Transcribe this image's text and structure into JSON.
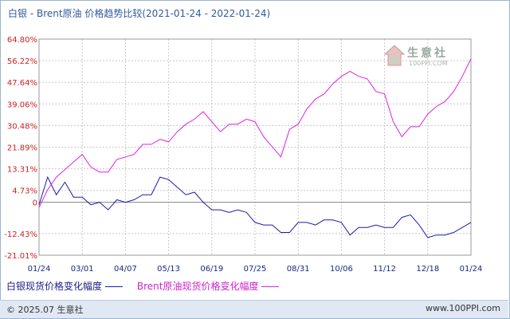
{
  "title": "白银 - Brent原油 价格趋势比较(2021-01-24 - 2022-01-24)",
  "legend": {
    "silver_label": "白银现货价格变化幅度",
    "brent_label": "Brent原油现货价格变化幅度"
  },
  "footer": {
    "copyright": "© 2025.07 生意社",
    "site": "www.100PPI.com"
  },
  "watermark": {
    "brand": "生意社",
    "sub": "100PPI.COM"
  },
  "colors": {
    "silver": "#1c1ca8",
    "brent": "#e020e0",
    "axis_text": "#cc2222",
    "x_text": "#1a2a80",
    "grid": "#c8c8c8",
    "title": "#31599c"
  },
  "chart_data": {
    "type": "line",
    "title": "白银 - Brent原油 价格趋势比较(2021-01-24 - 2022-01-24)",
    "x_labels": [
      "01/24",
      "03/01",
      "04/07",
      "05/13",
      "06/19",
      "07/25",
      "08/31",
      "10/06",
      "11/12",
      "12/18",
      "01/24"
    ],
    "y_ticks": [
      64.8,
      56.22,
      47.64,
      39.06,
      30.48,
      21.89,
      13.31,
      4.73,
      0,
      -12.43,
      -21.01
    ],
    "y_tick_labels": [
      "64.80%",
      "56.22%",
      "47.64%",
      "39.06%",
      "30.48%",
      "21.89%",
      "13.31%",
      "4.73%",
      "0",
      "-12.43%",
      "-21.01%"
    ],
    "ylim": [
      -21.01,
      64.8
    ],
    "grid": true,
    "series": [
      {
        "name": "白银现货价格变化幅度",
        "x": [
          0,
          0.2,
          0.4,
          0.6,
          0.8,
          1,
          1.2,
          1.4,
          1.6,
          1.8,
          2,
          2.2,
          2.4,
          2.6,
          2.8,
          3,
          3.2,
          3.4,
          3.6,
          3.8,
          4,
          4.2,
          4.4,
          4.6,
          4.8,
          5,
          5.2,
          5.4,
          5.6,
          5.8,
          6,
          6.2,
          6.4,
          6.6,
          6.8,
          7,
          7.2,
          7.4,
          7.6,
          7.8,
          8,
          8.2,
          8.4,
          8.6,
          8.8,
          9,
          9.2,
          9.4,
          9.6,
          9.8,
          10
        ],
        "y": [
          -1,
          10,
          3,
          8,
          2,
          2,
          -1,
          0,
          -3,
          1,
          0,
          1,
          3,
          3,
          10,
          9,
          6,
          3,
          4,
          0,
          -3,
          -3,
          -4,
          -3,
          -4,
          -8,
          -9,
          -9,
          -12,
          -12,
          -8,
          -8,
          -9,
          -7,
          -7,
          -8,
          -13,
          -10,
          -10,
          -9,
          -10,
          -10,
          -6,
          -5,
          -9,
          -14,
          -13,
          -13,
          -12,
          -10,
          -8
        ]
      },
      {
        "name": "Brent原油现货价格变化幅度",
        "x": [
          0,
          0.2,
          0.4,
          0.6,
          0.8,
          1,
          1.2,
          1.4,
          1.6,
          1.8,
          2,
          2.2,
          2.4,
          2.6,
          2.8,
          3,
          3.2,
          3.4,
          3.6,
          3.8,
          4,
          4.2,
          4.4,
          4.6,
          4.8,
          5,
          5.2,
          5.4,
          5.6,
          5.8,
          6,
          6.2,
          6.4,
          6.6,
          6.8,
          7,
          7.2,
          7.4,
          7.6,
          7.8,
          8,
          8.2,
          8.4,
          8.6,
          8.8,
          9,
          9.2,
          9.4,
          9.6,
          9.8,
          10
        ],
        "y": [
          -2,
          5,
          10,
          13,
          16,
          19,
          14,
          12,
          12,
          17,
          18,
          19,
          23,
          23,
          25,
          24,
          28,
          31,
          33,
          36,
          32,
          28,
          31,
          31,
          33,
          32,
          26,
          22,
          18,
          29,
          31,
          37,
          41,
          43,
          47,
          50,
          52,
          50,
          49,
          44,
          43,
          32,
          26,
          30,
          30,
          35,
          38,
          40,
          44,
          50,
          57
        ]
      }
    ]
  }
}
